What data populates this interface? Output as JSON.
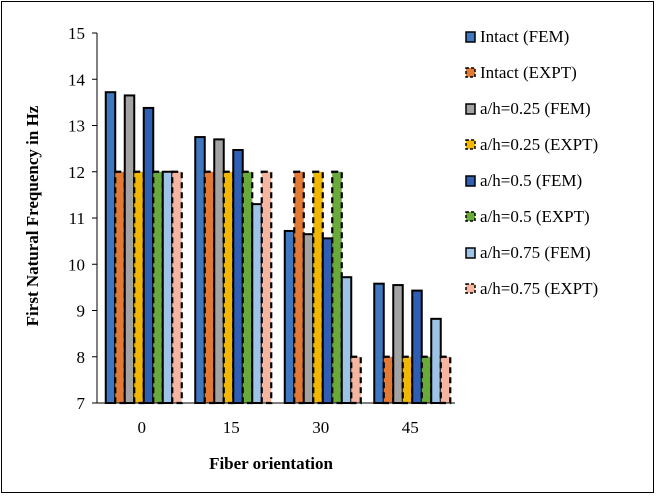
{
  "chart_data": {
    "type": "bar",
    "xlabel": "Fiber orientation",
    "ylabel": "First Natural Frequency in Hz",
    "ylim": [
      7,
      15
    ],
    "yticks": [
      7,
      8,
      9,
      10,
      11,
      12,
      13,
      14,
      15
    ],
    "categories": [
      "0",
      "15",
      "30",
      "45"
    ],
    "legend_position": "right",
    "grid": false,
    "series": [
      {
        "name": "Intact (FEM)",
        "color": "#3f78c0",
        "style": "solid",
        "values": [
          13.72,
          12.75,
          10.72,
          9.58
        ]
      },
      {
        "name": "Intact (EXPT)",
        "color": "#e27a35",
        "style": "dashed",
        "values": [
          12.0,
          12.0,
          12.0,
          8.0
        ]
      },
      {
        "name": "a/h=0.25 (FEM)",
        "color": "#a3a3a3",
        "style": "solid",
        "values": [
          13.65,
          12.7,
          10.65,
          9.55
        ]
      },
      {
        "name": "a/h=0.25 (EXPT)",
        "color": "#f2b705",
        "style": "dashed",
        "values": [
          12.0,
          12.0,
          12.0,
          8.0
        ]
      },
      {
        "name": "a/h=0.5 (FEM)",
        "color": "#2e5fb5",
        "style": "solid",
        "values": [
          13.38,
          12.47,
          10.56,
          9.43
        ]
      },
      {
        "name": "a/h=0.5 (EXPT)",
        "color": "#6aaa3a",
        "style": "dashed",
        "values": [
          12.0,
          12.0,
          12.0,
          8.0
        ]
      },
      {
        "name": "a/h=0.75 (FEM)",
        "color": "#9dc3e6",
        "style": "solid",
        "values": [
          12.0,
          11.3,
          9.72,
          8.82
        ]
      },
      {
        "name": "a/h=0.75 (EXPT)",
        "color": "#f4b6a1",
        "style": "dashed",
        "values": [
          12.0,
          12.0,
          8.0,
          8.0
        ]
      }
    ]
  }
}
